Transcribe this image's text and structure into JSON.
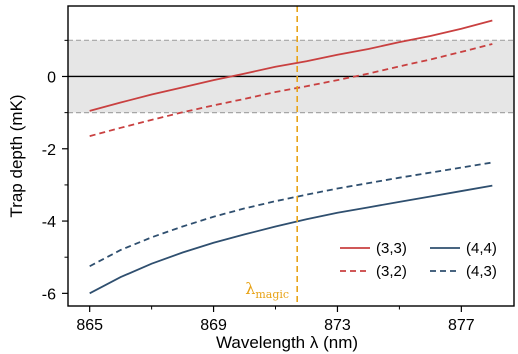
{
  "chart_data": {
    "type": "line",
    "xlabel": "Wavelength λ (nm)",
    "ylabel": "Trap depth (mK)",
    "xlim": [
      864.3,
      878.7
    ],
    "ylim": [
      -6.35,
      1.95
    ],
    "xticks": [
      865,
      869,
      873,
      877
    ],
    "xtick_labels": [
      "865",
      "869",
      "873",
      "877"
    ],
    "xminor": [
      867,
      871,
      875
    ],
    "yticks": [
      -6,
      -4,
      -2,
      0
    ],
    "ytick_labels": [
      "-6",
      "-4",
      "-2",
      "0"
    ],
    "yminor": [
      -5,
      -3,
      -1,
      1
    ],
    "shaded_band": [
      -1,
      1
    ],
    "zero_line": 0,
    "magic_wavelength": 871.7,
    "magic_label": {
      "main": "λ",
      "sub": "magic"
    },
    "legend_position": "lower-right",
    "series": [
      {
        "name": "(3,3)",
        "color": "#c94040",
        "dash": "solid",
        "x": [
          865,
          866,
          867,
          868,
          869,
          870,
          871,
          872,
          873,
          874,
          875,
          876,
          877,
          878
        ],
        "y": [
          -0.95,
          -0.72,
          -0.5,
          -0.3,
          -0.1,
          0.08,
          0.27,
          0.42,
          0.6,
          0.76,
          0.95,
          1.12,
          1.32,
          1.55
        ]
      },
      {
        "name": "(3,2)",
        "color": "#c94040",
        "dash": "dashed",
        "x": [
          865,
          866,
          867,
          868,
          869,
          870,
          871,
          872,
          873,
          874,
          875,
          876,
          877,
          878
        ],
        "y": [
          -1.65,
          -1.42,
          -1.2,
          -0.99,
          -0.8,
          -0.62,
          -0.43,
          -0.27,
          -0.1,
          0.08,
          0.28,
          0.47,
          0.68,
          0.9
        ]
      },
      {
        "name": "(4,4)",
        "color": "#2f4f6f",
        "dash": "solid",
        "x": [
          865,
          866,
          867,
          868,
          869,
          870,
          871,
          872,
          873,
          874,
          875,
          876,
          877,
          878
        ],
        "y": [
          -6.0,
          -5.55,
          -5.18,
          -4.87,
          -4.6,
          -4.37,
          -4.15,
          -3.95,
          -3.77,
          -3.62,
          -3.47,
          -3.32,
          -3.17,
          -3.02
        ]
      },
      {
        "name": "(4,3)",
        "color": "#2f4f6f",
        "dash": "dashed",
        "x": [
          865,
          866,
          867,
          868,
          869,
          870,
          871,
          872,
          873,
          874,
          875,
          876,
          877,
          878
        ],
        "y": [
          -5.25,
          -4.8,
          -4.45,
          -4.15,
          -3.88,
          -3.65,
          -3.45,
          -3.27,
          -3.1,
          -2.95,
          -2.8,
          -2.66,
          -2.52,
          -2.38
        ]
      }
    ]
  }
}
